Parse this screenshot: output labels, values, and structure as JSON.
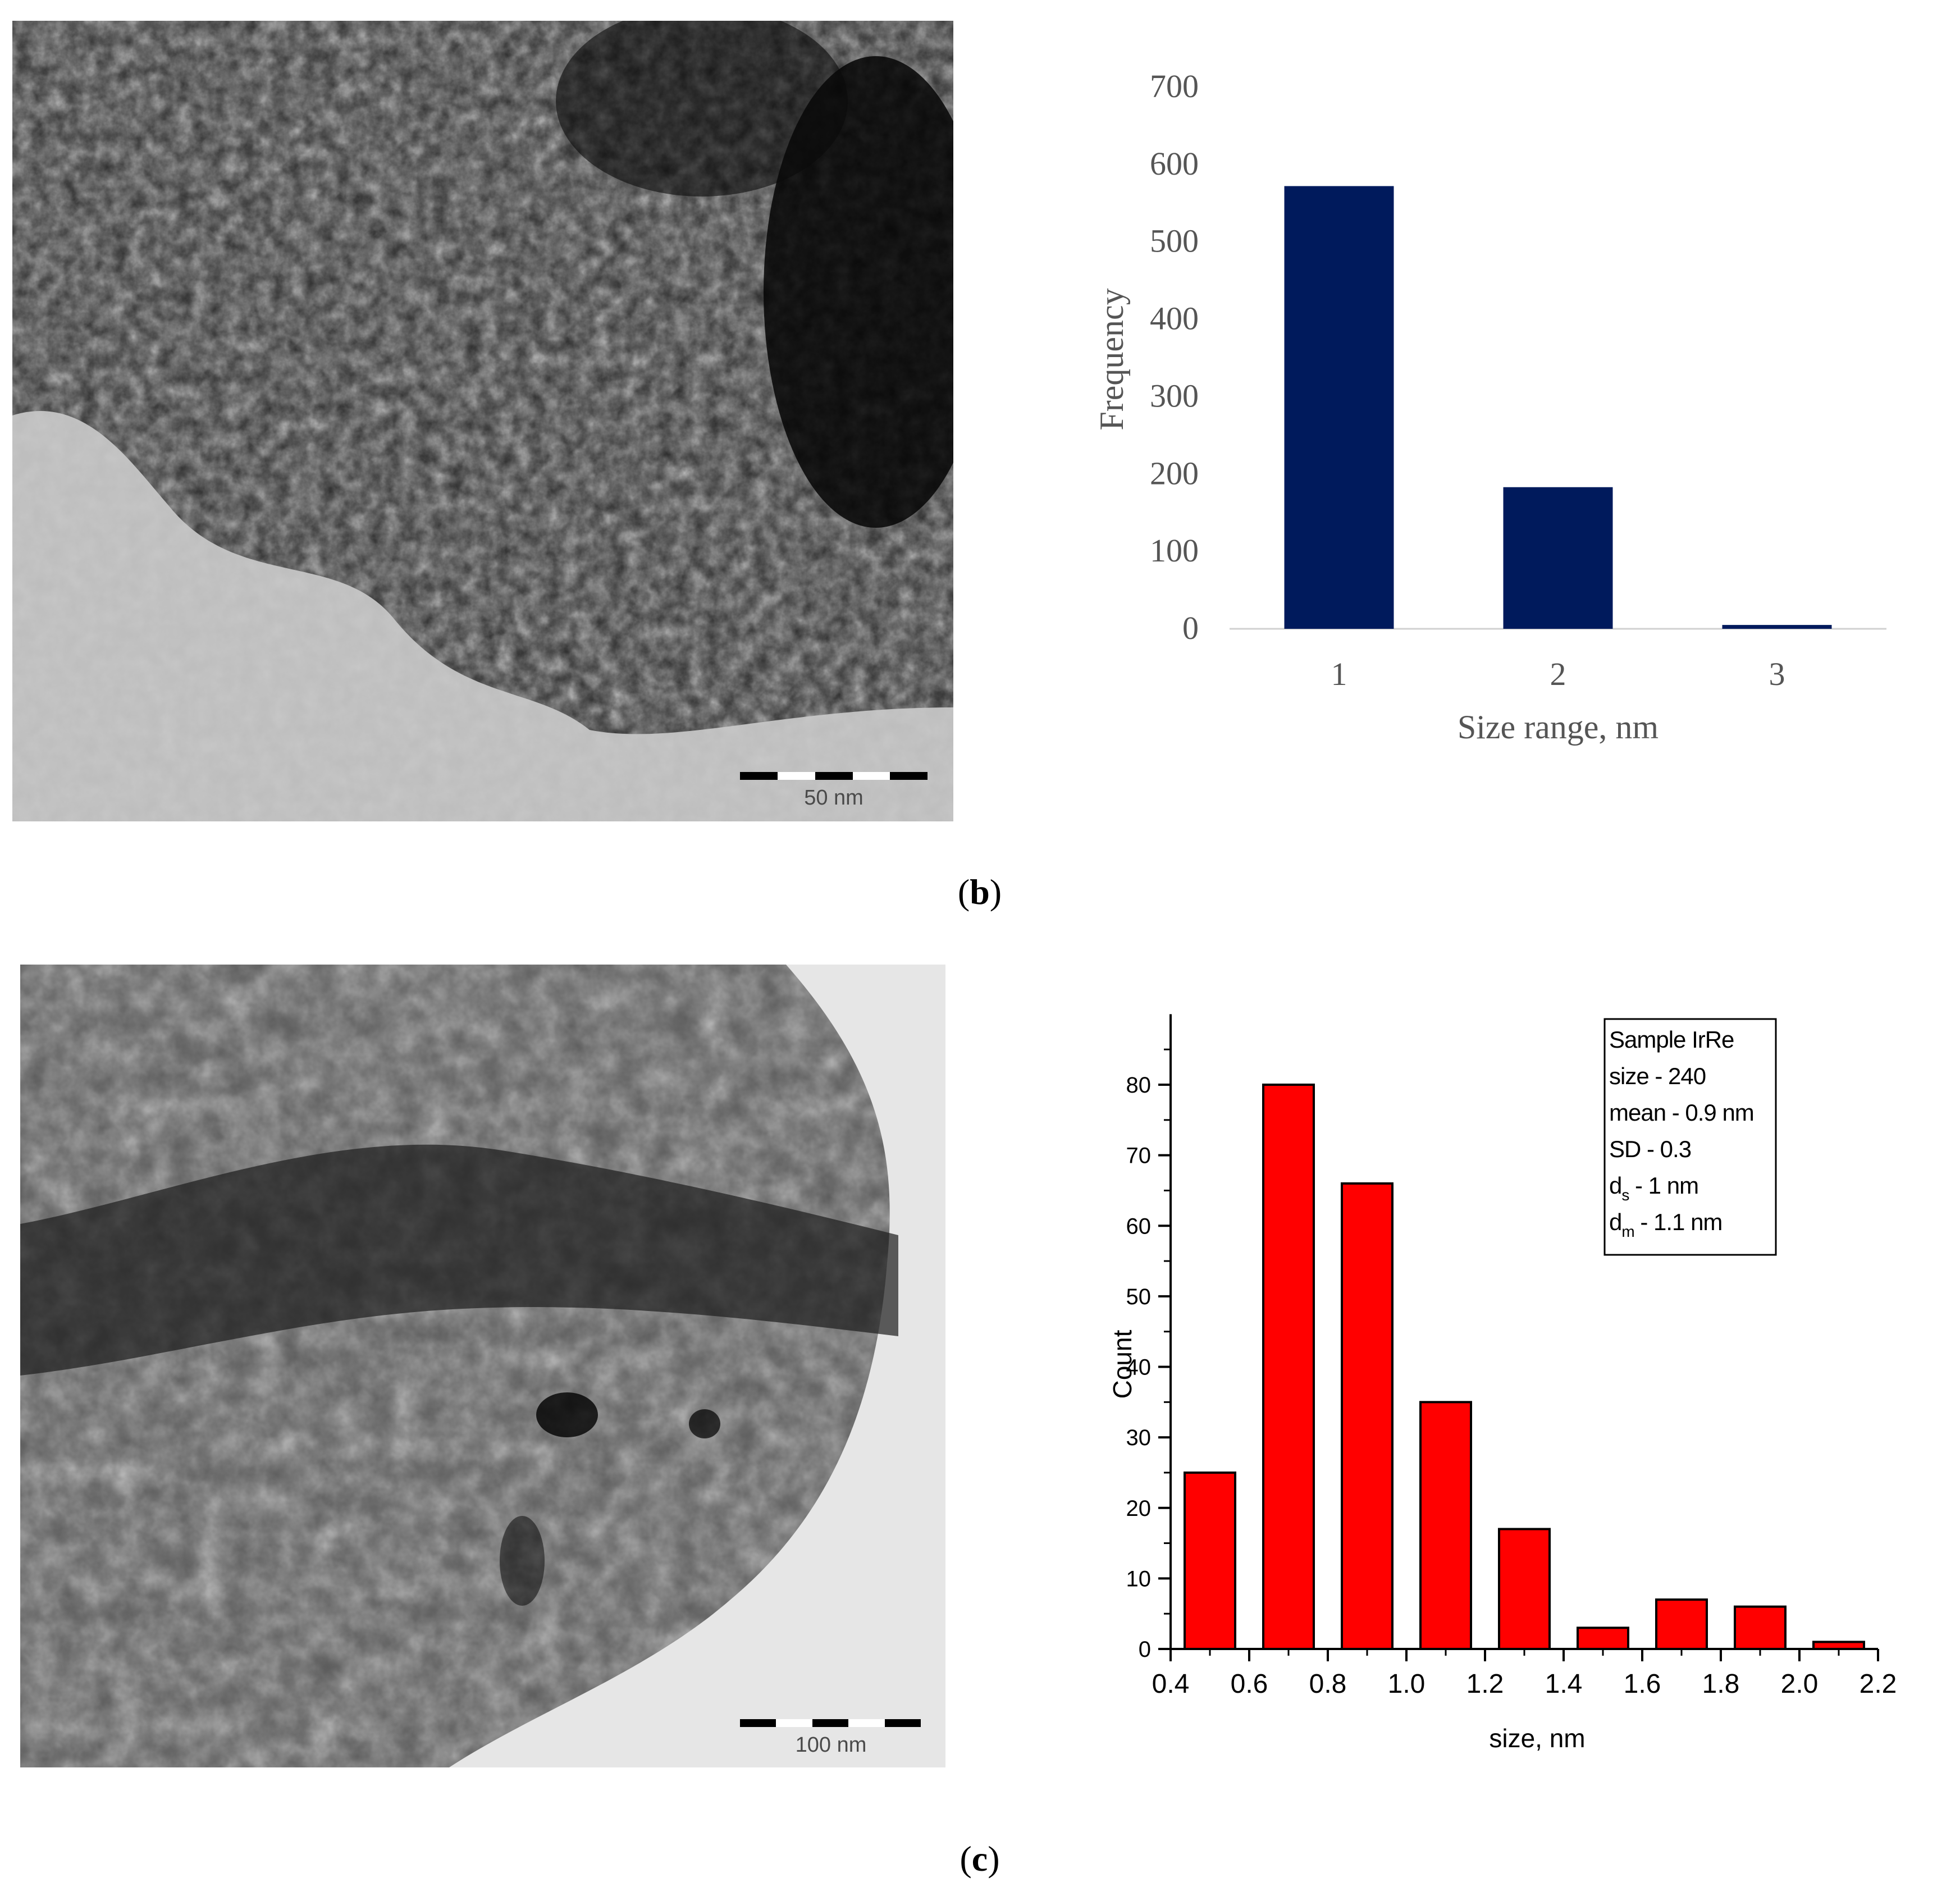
{
  "panels": [
    {
      "label_open": "(",
      "label_letter": "b",
      "label_close": ")",
      "scale_bar_label": "50 nm"
    },
    {
      "label_open": "(",
      "label_letter": "c",
      "label_close": ")",
      "scale_bar_label": "100 nm"
    }
  ],
  "chart_data": [
    {
      "type": "bar",
      "categories": [
        "1",
        "2",
        "3"
      ],
      "values": [
        572,
        183,
        5
      ],
      "title": "",
      "xlabel": "Size range, nm",
      "ylabel": "Frequency",
      "ylim": [
        0,
        700
      ],
      "yticks": [
        "0",
        "100",
        "200",
        "300",
        "400",
        "500",
        "600",
        "700"
      ],
      "bar_color": "#001A5C",
      "grid": false
    },
    {
      "type": "bar",
      "bins": [
        {
          "from": 0.4,
          "to": 0.6,
          "count": 25
        },
        {
          "from": 0.6,
          "to": 0.8,
          "count": 80
        },
        {
          "from": 0.8,
          "to": 1.0,
          "count": 66
        },
        {
          "from": 1.0,
          "to": 1.2,
          "count": 35
        },
        {
          "from": 1.2,
          "to": 1.4,
          "count": 17
        },
        {
          "from": 1.4,
          "to": 1.6,
          "count": 3
        },
        {
          "from": 1.6,
          "to": 1.8,
          "count": 7
        },
        {
          "from": 1.8,
          "to": 2.0,
          "count": 6
        },
        {
          "from": 2.0,
          "to": 2.2,
          "count": 1
        }
      ],
      "title": "",
      "xlabel": "size, nm",
      "ylabel": "Count",
      "xlim": [
        0.4,
        2.2
      ],
      "ylim": [
        0,
        90
      ],
      "xticks": [
        "0.4",
        "0.6",
        "0.8",
        "1.0",
        "1.2",
        "1.4",
        "1.6",
        "1.8",
        "2.0",
        "2.2"
      ],
      "yticks": [
        "0",
        "10",
        "20",
        "30",
        "40",
        "50",
        "60",
        "70",
        "80"
      ],
      "bar_color": "#FF0000",
      "grid": false,
      "legend": {
        "placement": "top-right",
        "lines": [
          {
            "text": "Sample IrRe"
          },
          {
            "text": "size - 240"
          },
          {
            "text": "mean - 0.9 nm"
          },
          {
            "text": "SD - 0.3"
          },
          {
            "main": "d",
            "sub": "s",
            "rest": " - 1 nm"
          },
          {
            "main": "d",
            "sub": "m",
            "rest": " - 1.1 nm"
          }
        ]
      }
    }
  ]
}
